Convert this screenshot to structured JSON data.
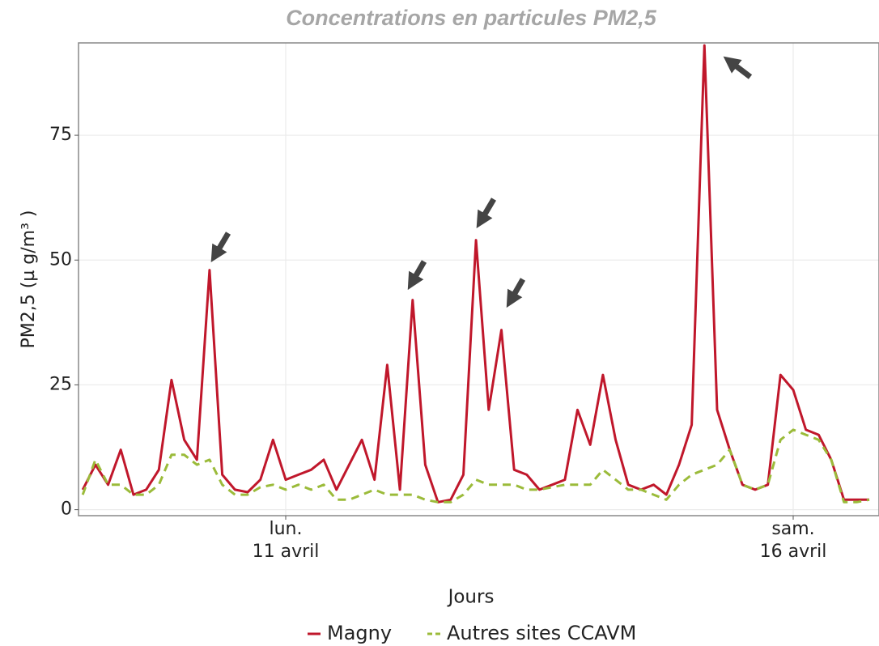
{
  "chart_data": {
    "type": "line",
    "title": "Concentrations en particules PM2,5",
    "xlabel": "Jours",
    "ylabel": "PM2,5 (µ g/m³ )",
    "categories": [
      null,
      null,
      null,
      null,
      null,
      null,
      null,
      null,
      null,
      null,
      null,
      null,
      null,
      null,
      null,
      null,
      "lun.\n11 avril",
      null,
      null,
      null,
      null,
      null,
      null,
      null,
      null,
      null,
      null,
      null,
      null,
      null,
      null,
      null,
      null,
      null,
      null,
      null,
      null,
      null,
      null,
      null,
      null,
      null,
      null,
      null,
      null,
      null,
      null,
      null,
      null,
      null,
      null,
      null,
      null,
      null,
      null,
      null,
      "sam.\n16 avril",
      null,
      null,
      null,
      null,
      null,
      null
    ],
    "series": [
      {
        "name": "Magny",
        "color": "#c0172b",
        "dash": false,
        "values": [
          4,
          9,
          5,
          12,
          3,
          4,
          8,
          26,
          14,
          10,
          48,
          7,
          4,
          3.5,
          6,
          14,
          6,
          7,
          8,
          10,
          4,
          9,
          14,
          6,
          29,
          4,
          42,
          9,
          1.5,
          2,
          7,
          54,
          20,
          36,
          8,
          7,
          4,
          5,
          6,
          20,
          13,
          27,
          14,
          5,
          4,
          5,
          3,
          9,
          17,
          93,
          20,
          12,
          5,
          4,
          5,
          27,
          24,
          16,
          15,
          10,
          2,
          2,
          2
        ]
      },
      {
        "name": "Autres sites CCAVM",
        "color": "#9bbb3a",
        "dash": true,
        "values": [
          3,
          10,
          5,
          5,
          3,
          3,
          5,
          11,
          11,
          9,
          10,
          5,
          3,
          3,
          4.5,
          5,
          4,
          5,
          4,
          5,
          2,
          2,
          3,
          4,
          3,
          3,
          3,
          2,
          1.5,
          1.5,
          3,
          6,
          5,
          5,
          5,
          4,
          4,
          4.5,
          5,
          5,
          5,
          8,
          6,
          4,
          4,
          3,
          2,
          5,
          7,
          8,
          9,
          12,
          5,
          4,
          5,
          14,
          16,
          15,
          14,
          10,
          1.5,
          1.5,
          2
        ]
      }
    ],
    "ylim": [
      -1.2,
      93.5
    ],
    "yticks": [
      0,
      25,
      50,
      75
    ],
    "grid": true
  }
}
